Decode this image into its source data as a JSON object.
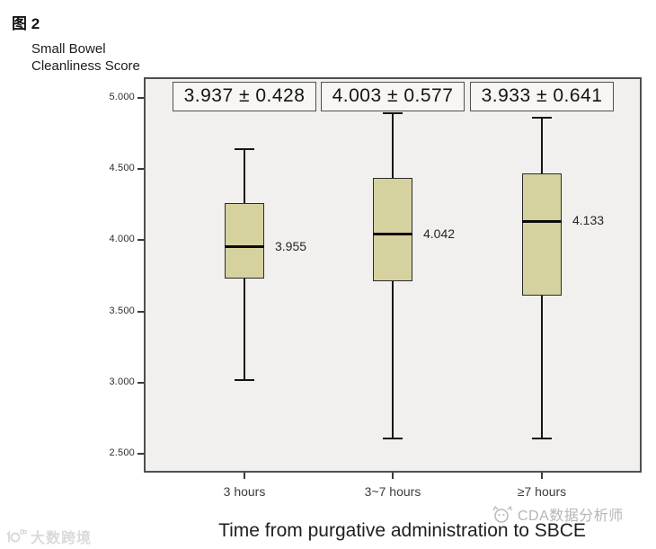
{
  "figure_label": "图 2",
  "y_axis": {
    "line1": "Small Bowel",
    "line2": "Cleanliness Score"
  },
  "watermarks": {
    "left_text": "大数跨境",
    "right_text": "CDA数据分析师"
  },
  "chart_data": {
    "type": "boxplot",
    "title": "图 2",
    "xlabel": "Time from purgative administration to SBCE",
    "ylabel": "Small Bowel Cleanliness Score",
    "ylim": [
      2.5,
      5.0
    ],
    "grid": false,
    "y_tick_values": [
      5.0,
      4.5,
      4.0,
      3.5,
      3.0,
      2.5
    ],
    "y_tick_labels": [
      "5.000",
      "4.500",
      "4.000",
      "3.500",
      "3.000",
      "2.500"
    ],
    "categories": [
      "3 hours",
      "3~7 hours",
      "≥7 hours"
    ],
    "series": [
      {
        "category": "3 hours",
        "whisker_low": 3.02,
        "q1": 3.73,
        "median": 3.955,
        "q3": 4.26,
        "whisker_high": 4.64,
        "median_label": "3.955",
        "mean_sd_label": "3.937 ± 0.428"
      },
      {
        "category": "3~7 hours",
        "whisker_low": 2.61,
        "q1": 3.71,
        "median": 4.042,
        "q3": 4.44,
        "whisker_high": 4.89,
        "median_label": "4.042",
        "mean_sd_label": "4.003 ± 0.577"
      },
      {
        "category": "≥7 hours",
        "whisker_low": 2.61,
        "q1": 3.61,
        "median": 4.133,
        "q3": 4.47,
        "whisker_high": 4.86,
        "median_label": "4.133",
        "mean_sd_label": "3.933 ± 0.641"
      }
    ],
    "colors": {
      "box_fill": "#d6d2a0",
      "box_stroke": "#2b2b2b",
      "line": "#141414",
      "plot_bg": "#f1f0ee",
      "annotation_bg": "#f7f6f4"
    },
    "legend": null
  }
}
